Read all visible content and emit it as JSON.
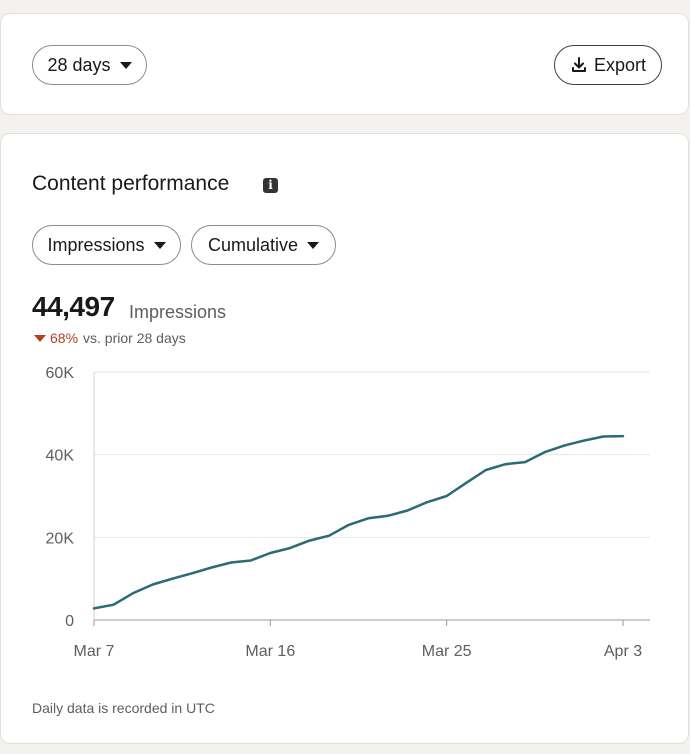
{
  "controls": {
    "range_label": "28 days",
    "export_label": "Export"
  },
  "panel": {
    "title": "Content performance",
    "metric_label": "Impressions",
    "mode_label": "Cumulative",
    "total_value": "44,497",
    "total_unit": "Impressions",
    "change_pct": "68%",
    "change_text": "vs. prior 28 days",
    "footnote": "Daily data is recorded in UTC"
  },
  "colors": {
    "line": "#2a6b75",
    "negative": "#b24020",
    "grid": "#e6e6e6"
  },
  "chart_data": {
    "type": "line",
    "ylim": [
      0,
      60000
    ],
    "y_ticks": [
      0,
      20000,
      40000,
      60000
    ],
    "y_tick_labels": [
      "0",
      "20K",
      "40K",
      "60K"
    ],
    "x_ticks": [
      "Mar 7",
      "Mar 16",
      "Mar 25",
      "Apr 3"
    ],
    "x": [
      "Mar 7",
      "Mar 8",
      "Mar 9",
      "Mar 10",
      "Mar 11",
      "Mar 12",
      "Mar 13",
      "Mar 14",
      "Mar 15",
      "Mar 16",
      "Mar 17",
      "Mar 18",
      "Mar 19",
      "Mar 20",
      "Mar 21",
      "Mar 22",
      "Mar 23",
      "Mar 24",
      "Mar 25",
      "Mar 26",
      "Mar 27",
      "Mar 28",
      "Mar 29",
      "Mar 30",
      "Mar 31",
      "Apr 1",
      "Apr 2",
      "Apr 3"
    ],
    "series": [
      {
        "values": [
          2800,
          3700,
          6500,
          8600,
          10000,
          11300,
          12700,
          13900,
          14400,
          16200,
          17400,
          19200,
          20400,
          23000,
          24600,
          25200,
          26500,
          28500,
          30000,
          33200,
          36300,
          37700,
          38200,
          40600,
          42200,
          43400,
          44400,
          44497
        ]
      }
    ]
  }
}
